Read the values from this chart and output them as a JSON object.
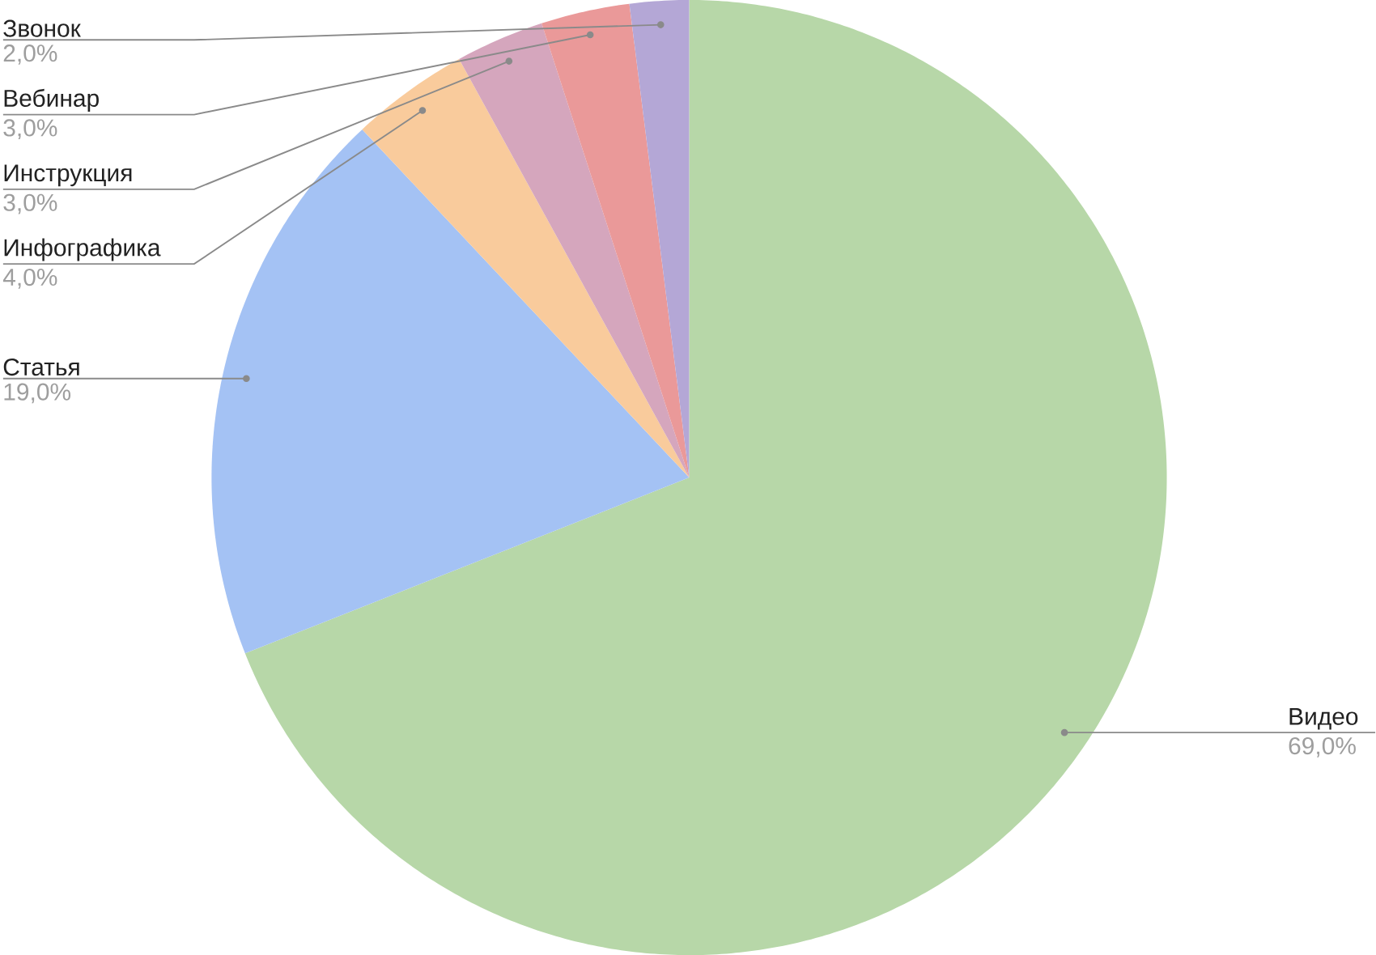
{
  "chart_data": {
    "type": "pie",
    "categories": [
      "Видео",
      "Статья",
      "Инфографика",
      "Инструкция",
      "Вебинар",
      "Звонок"
    ],
    "values": [
      69,
      19,
      4,
      3,
      3,
      2
    ],
    "colors": [
      "#b7d7a8",
      "#a4c2f4",
      "#f9cb9c",
      "#d5a6bd",
      "#ea9999",
      "#b4a7d6"
    ],
    "value_labels": [
      "69,0%",
      "19,0%",
      "4,0%",
      "3,0%",
      "3,0%",
      "2,0%"
    ]
  }
}
